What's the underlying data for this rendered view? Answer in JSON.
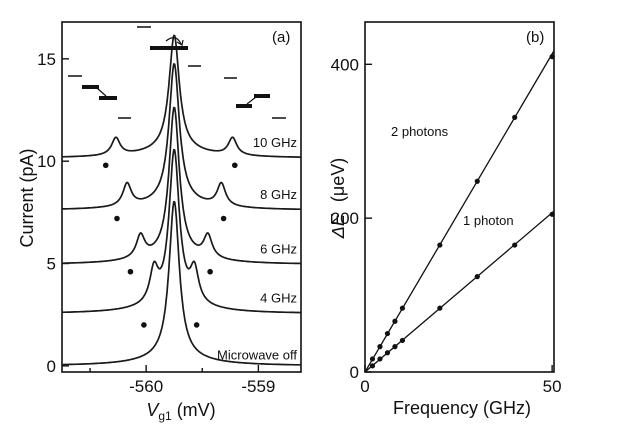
{
  "chart_data": [
    {
      "type": "line",
      "panel_label": "(a)",
      "xlabel_main": "V",
      "xlabel_sub": "g1",
      "xlabel_unit": " (mV)",
      "ylabel": "Current  (pA)",
      "xlim": [
        -560.75,
        -558.62
      ],
      "ylim": [
        -0.3,
        16.8
      ],
      "xticks": [
        -560,
        -559
      ],
      "xtick_labels": [
        "-560",
        "-559"
      ],
      "yticks": [
        0,
        5,
        10,
        15
      ],
      "ytick_labels": [
        "0",
        "5",
        "10",
        "15"
      ],
      "central_peak_position_mV": -559.75,
      "series": [
        {
          "name": "Microwave off",
          "baseline": 0.0,
          "main_peak": 7.7,
          "side_offset_mV": 0,
          "side_height": 0,
          "dot_y": null
        },
        {
          "name": "4 GHz",
          "baseline": 2.55,
          "main_peak": 7.5,
          "side_offset_mV": 0.18,
          "side_height": 1.6,
          "dot_y": 2.0
        },
        {
          "name": "6 GHz",
          "baseline": 4.95,
          "main_peak": 7.3,
          "side_offset_mV": 0.3,
          "side_height": 1.1,
          "dot_y": 4.6
        },
        {
          "name": "8 GHz",
          "baseline": 7.6,
          "main_peak": 6.8,
          "side_offset_mV": 0.42,
          "side_height": 1.1,
          "dot_y": 7.2
        },
        {
          "name": "10 GHz",
          "baseline": 10.15,
          "main_peak": 5.65,
          "side_offset_mV": 0.52,
          "side_height": 0.85,
          "dot_y": 9.8
        }
      ]
    },
    {
      "type": "scatter",
      "panel_label": "(b)",
      "xlabel": "Frequency (GHz)",
      "ylabel_main": "ΔE",
      "ylabel_unit": "(μeV)",
      "xlim": [
        0,
        50.5
      ],
      "ylim": [
        0,
        455
      ],
      "xticks": [
        0,
        50
      ],
      "xtick_labels": [
        "0",
        "50"
      ],
      "yticks": [
        0,
        200,
        400
      ],
      "ytick_labels": [
        "0",
        "200",
        "400"
      ],
      "series": [
        {
          "name": "2 photons",
          "slope": 8.27,
          "x": [
            2,
            4,
            6,
            8,
            10,
            20,
            30,
            40,
            50
          ],
          "y": [
            17,
            33,
            50,
            66,
            83,
            165,
            248,
            331,
            410
          ]
        },
        {
          "name": "1 photon",
          "slope": 4.14,
          "x": [
            2,
            4,
            6,
            8,
            10,
            20,
            30,
            40,
            50
          ],
          "y": [
            8,
            17,
            25,
            33,
            41,
            83,
            124,
            165,
            205
          ]
        }
      ]
    }
  ]
}
